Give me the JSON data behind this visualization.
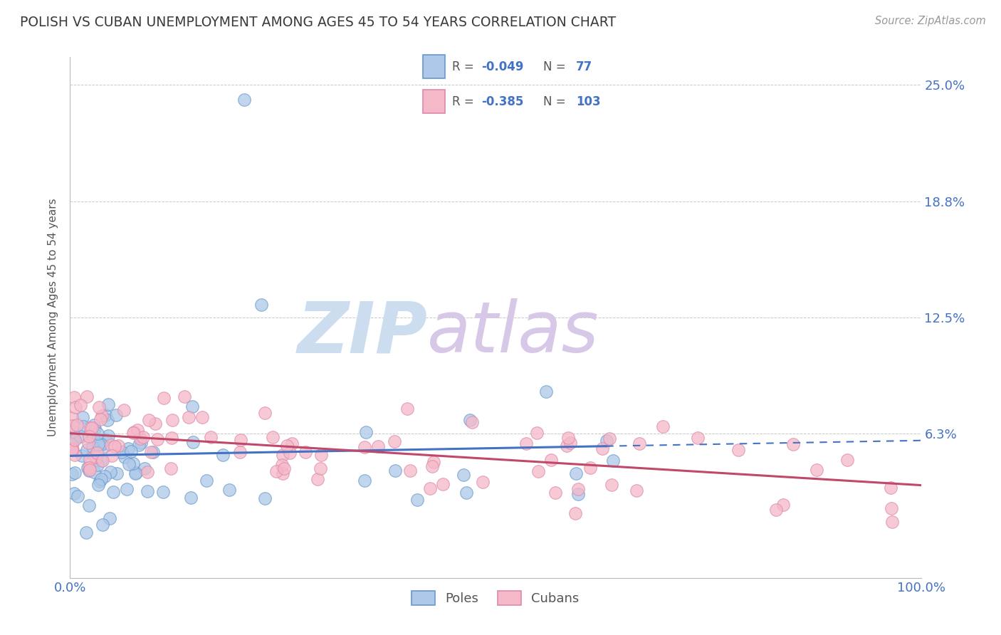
{
  "title": "POLISH VS CUBAN UNEMPLOYMENT AMONG AGES 45 TO 54 YEARS CORRELATION CHART",
  "source": "Source: ZipAtlas.com",
  "ylabel": "Unemployment Among Ages 45 to 54 years",
  "xlim": [
    0,
    100
  ],
  "ylim": [
    -1.5,
    26.5
  ],
  "ytick_vals": [
    0,
    6.25,
    12.5,
    18.75,
    25.0
  ],
  "ytick_labels": [
    "",
    "6.3%",
    "12.5%",
    "18.8%",
    "25.0%"
  ],
  "xtick_labels": [
    "0.0%",
    "100.0%"
  ],
  "poles_R": -0.049,
  "poles_N": 77,
  "cubans_R": -0.385,
  "cubans_N": 103,
  "poles_color": "#adc8e8",
  "poles_edge_color": "#6699cc",
  "poles_line_color": "#4472c4",
  "cubans_color": "#f5b8c8",
  "cubans_edge_color": "#dd88aa",
  "cubans_line_color": "#c0496a",
  "background_color": "#ffffff",
  "grid_color": "#bbbbbb",
  "title_color": "#3a3a3a",
  "axis_label_color": "#555555",
  "tick_label_color": "#4472c4",
  "watermark_color_zip": "#ccddf0",
  "watermark_color_atlas": "#d8c8e8",
  "legend_label_poles": "Poles",
  "legend_label_cubans": "Cubans",
  "poles_solid_xmax": 63,
  "cubans_solid_xmax": 100
}
